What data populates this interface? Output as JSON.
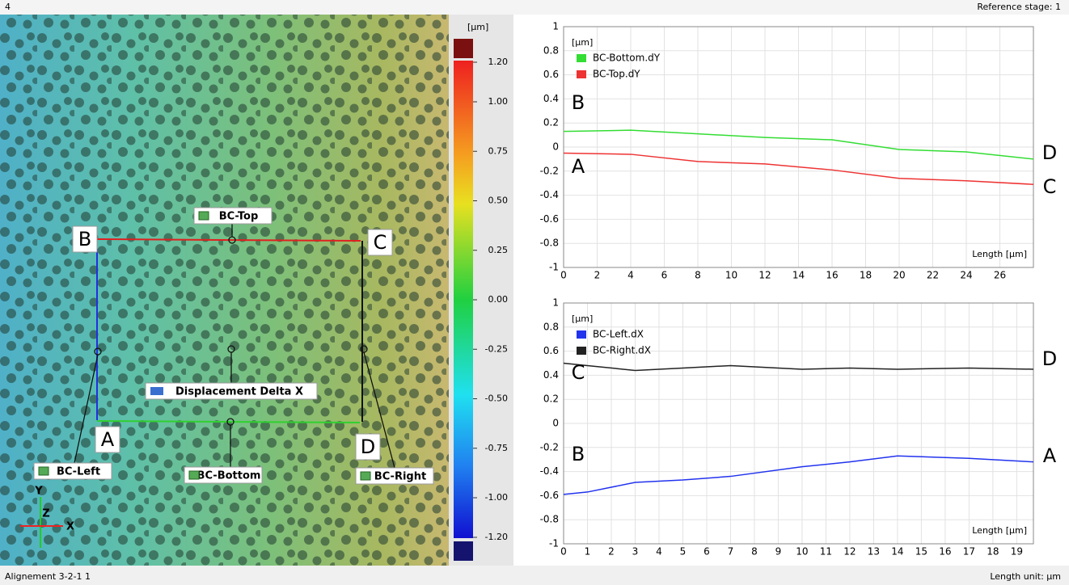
{
  "header": {
    "stage": "4",
    "reference": "Reference stage: 1"
  },
  "image": {
    "points": [
      "B",
      "C",
      "A",
      "D"
    ],
    "tags": [
      "BC-Top",
      "BC-Left",
      "BC-Bottom",
      "BC-Right"
    ],
    "tool": "Displacement Delta X",
    "axes": [
      "Y",
      "Z",
      "X"
    ]
  },
  "colorbar": {
    "unit": "[µm]",
    "ticks": [
      {
        "value": 1.2,
        "label": "1.20"
      },
      {
        "value": 1,
        "label": "1.00"
      },
      0.75,
      {
        "value": 0.5,
        "label": "0.50"
      },
      0.25,
      {
        "value": 0,
        "label": "0.00"
      },
      -0.25,
      {
        "value": -0.5,
        "label": "-0.50"
      },
      -0.75,
      {
        "value": -1,
        "label": "-1.00"
      },
      {
        "value": -1.2,
        "label": "-1.20"
      }
    ]
  },
  "chart_data": [
    {
      "type": "line",
      "y_label": "[µm]",
      "x_label": "Length [µm]",
      "grid": true,
      "x": [
        0,
        4,
        8,
        12,
        16,
        20,
        24,
        28
      ],
      "series": [
        {
          "name": "BC-Bottom.dY",
          "color": "#33dd33",
          "values": [
            0.13,
            0.14,
            0.11,
            0.08,
            0.06,
            -0.02,
            -0.04,
            -0.1
          ]
        },
        {
          "name": "BC-Top.dY",
          "color": "#ee3333",
          "values": [
            -0.05,
            -0.06,
            -0.12,
            -0.14,
            -0.19,
            -0.26,
            -0.28,
            -0.31
          ]
        }
      ],
      "xlim": [
        0,
        28
      ],
      "xticks": [
        0,
        2,
        4,
        6,
        8,
        10,
        12,
        14,
        16,
        18,
        20,
        22,
        24,
        26
      ],
      "ylim": [
        -1,
        1
      ],
      "yticks": [
        1,
        0.8,
        0.6,
        0.4,
        0.2,
        0,
        -0.2,
        -0.4,
        -0.6,
        -0.8,
        -1
      ],
      "annotations": [
        "B",
        "A",
        "D",
        "C"
      ]
    },
    {
      "type": "line",
      "y_label": "[µm]",
      "x_label": "Length [µm]",
      "grid": true,
      "x": [
        0,
        1,
        3,
        5,
        7,
        10,
        12,
        14,
        17,
        19.7
      ],
      "series": [
        {
          "name": "BC-Left.dX",
          "color": "#2233ee",
          "values": [
            -0.59,
            -0.57,
            -0.49,
            -0.47,
            -0.44,
            -0.36,
            -0.32,
            -0.27,
            -0.29,
            -0.32
          ]
        },
        {
          "name": "BC-Right.dX",
          "color": "#222222",
          "values": [
            0.5,
            0.48,
            0.44,
            0.46,
            0.48,
            0.45,
            0.46,
            0.45,
            0.46,
            0.45
          ]
        }
      ],
      "xlim": [
        0,
        19.7
      ],
      "xticks": [
        0,
        1,
        2,
        3,
        4,
        5,
        6,
        7,
        8,
        9,
        10,
        11,
        12,
        13,
        14,
        15,
        16,
        17,
        18,
        19
      ],
      "ylim": [
        -1,
        1
      ],
      "yticks": [
        1,
        0.8,
        0.6,
        0.4,
        0.2,
        0,
        -0.2,
        -0.4,
        -0.6,
        -0.8,
        -1
      ],
      "annotations": [
        "C",
        "B",
        "D",
        "A"
      ]
    }
  ],
  "status": {
    "left": "Alignement 3-2-1 1",
    "right": "Length unit: µm"
  }
}
